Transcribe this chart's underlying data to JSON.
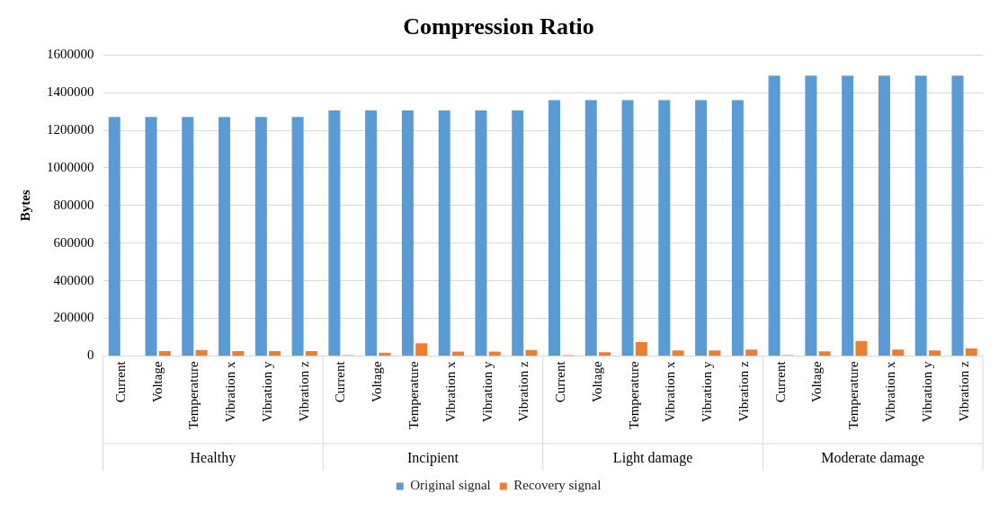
{
  "chart_data": {
    "type": "bar",
    "title": "Compression Ratio",
    "ylabel": "Bytes",
    "categories": [
      "Current",
      "Voltage",
      "Temperature",
      "Vibration x",
      "Vibration y",
      "Vibration z",
      "Current",
      "Voltage",
      "Temperature",
      "Vibration x",
      "Vibration y",
      "Vibration z",
      "Current",
      "Voltage",
      "Temperature",
      "Vibration x",
      "Vibration y",
      "Vibration z",
      "Current",
      "Voltage",
      "Temperature",
      "Vibration x",
      "Vibration y",
      "Vibration z"
    ],
    "annotations": [
      "Healthy",
      "Incipient",
      "Light damage",
      "Moderate damage"
    ],
    "series": [
      {
        "name": "Original signal",
        "color": "#5b9bd5",
        "values": [
          1270000,
          1270000,
          1270000,
          1270000,
          1270000,
          1270000,
          1305000,
          1305000,
          1305000,
          1305000,
          1305000,
          1305000,
          1360000,
          1360000,
          1360000,
          1360000,
          1360000,
          1360000,
          1490000,
          1490000,
          1490000,
          1490000,
          1490000,
          1490000
        ]
      },
      {
        "name": "Recovery signal",
        "color": "#ed7d31",
        "values": [
          0,
          26000,
          32000,
          26000,
          26000,
          26000,
          5000,
          18000,
          68000,
          24000,
          24000,
          32000,
          5000,
          20000,
          74000,
          29000,
          29000,
          34000,
          5000,
          25000,
          80000,
          34000,
          29000,
          40000
        ]
      }
    ],
    "ylim": [
      0,
      1600000
    ],
    "yticks": [
      0,
      200000,
      400000,
      600000,
      800000,
      1000000,
      1200000,
      1400000,
      1600000
    ],
    "grid": "y",
    "legend": "bottom"
  }
}
